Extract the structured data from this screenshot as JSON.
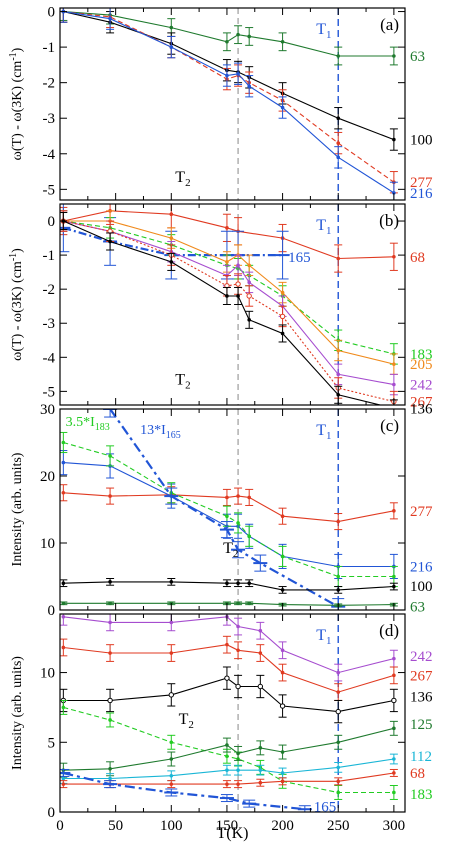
{
  "figure": {
    "x_axis_label": "T(K)",
    "x_ticks": [
      "0",
      "50",
      "100",
      "150",
      "200",
      "250",
      "300"
    ],
    "t1_label": "T",
    "t1_sub": "1",
    "t2_label": "T",
    "t2_sub": "2"
  },
  "chart_data": [
    {
      "panel_label": "(a)",
      "type": "line",
      "ylabel_main": "ω(T) - ω(3K)  (cm",
      "ylabel_sup": "-1",
      "ylabel_tail": ")",
      "xlim": [
        0,
        310
      ],
      "ylim": [
        -5.3,
        0.1
      ],
      "y_ticks": [
        0,
        -1,
        -2,
        -3,
        -4,
        -5
      ],
      "y_tick_labels": [
        "0",
        "-1",
        "-2",
        "-3",
        "-4",
        "-5"
      ],
      "t2_pos": {
        "x": 100,
        "y": -4.8
      },
      "series": [
        {
          "name": "63",
          "color": "#1f7a2e",
          "dash": "",
          "marker": "dot",
          "x": [
            3,
            45,
            100,
            150,
            160,
            170,
            200,
            250,
            300
          ],
          "y": [
            0,
            -0.1,
            -0.45,
            -0.85,
            -0.65,
            -0.7,
            -0.85,
            -1.25,
            -1.25
          ],
          "err": 0.25
        },
        {
          "name": "100",
          "color": "#000000",
          "dash": "",
          "marker": "dot",
          "x": [
            3,
            45,
            100,
            150,
            160,
            170,
            200,
            250,
            300
          ],
          "y": [
            0,
            -0.3,
            -0.9,
            -1.65,
            -1.7,
            -1.85,
            -2.3,
            -3.0,
            -3.6
          ],
          "err": 0.3
        },
        {
          "name": "277",
          "color": "#e03a21",
          "dash": "5,3",
          "marker": "dot",
          "x": [
            3,
            45,
            100,
            150,
            160,
            170,
            200,
            250,
            300
          ],
          "y": [
            0,
            -0.15,
            -1.0,
            -1.9,
            -1.8,
            -2.0,
            -2.5,
            -3.7,
            -4.8
          ],
          "err": 0.3
        },
        {
          "name": "216",
          "color": "#2155d6",
          "dash": "",
          "marker": "dot",
          "x": [
            3,
            45,
            100,
            150,
            160,
            170,
            200,
            250,
            300
          ],
          "y": [
            0,
            -0.2,
            -1.0,
            -1.8,
            -1.75,
            -2.1,
            -2.7,
            -4.1,
            -5.1
          ],
          "err": 0.3
        }
      ]
    },
    {
      "panel_label": "(b)",
      "type": "line",
      "ylabel_main": "ω(T) - ω(3K)  (cm",
      "ylabel_sup": "-1",
      "ylabel_tail": ")",
      "xlim": [
        0,
        310
      ],
      "ylim": [
        -5.4,
        0.5
      ],
      "y_ticks": [
        0,
        -1,
        -2,
        -3,
        -4,
        -5
      ],
      "y_tick_labels": [
        "0",
        "-1",
        "-2",
        "-3",
        "-4",
        "-5"
      ],
      "t2_pos": {
        "x": 100,
        "y": -4.8
      },
      "series": [
        {
          "name": "68",
          "color": "#e03a21",
          "dash": "",
          "marker": "dot",
          "x": [
            3,
            45,
            100,
            150,
            160,
            200,
            250,
            300
          ],
          "y": [
            0,
            0.3,
            0.2,
            -0.2,
            -0.3,
            -0.5,
            -1.1,
            -1.05
          ],
          "err": 0.4
        },
        {
          "name": "165",
          "color": "#2155d6",
          "dash": "8,3,2,3",
          "marker": "bigerr",
          "x": [
            3,
            45,
            100,
            150,
            160,
            200
          ],
          "y": [
            -0.2,
            -0.6,
            -1.0,
            -1.0,
            -1.0,
            -1.0
          ],
          "err": 0.7
        },
        {
          "name": "183",
          "color": "#22cc22",
          "dash": "5,3",
          "marker": "dot",
          "x": [
            3,
            45,
            100,
            150,
            160,
            170,
            200,
            250,
            300
          ],
          "y": [
            0,
            -0.2,
            -0.7,
            -1.3,
            -1.4,
            -1.6,
            -2.2,
            -3.5,
            -3.9
          ],
          "err": 0.3
        },
        {
          "name": "205",
          "color": "#f08a1c",
          "dash": "",
          "marker": "dot",
          "x": [
            3,
            45,
            100,
            150,
            160,
            170,
            200,
            250,
            300
          ],
          "y": [
            0,
            0,
            -0.5,
            -1.2,
            -1.0,
            -1.3,
            -2.1,
            -3.8,
            -4.2
          ],
          "err": 0.3
        },
        {
          "name": "242",
          "color": "#a64dcf",
          "dash": "",
          "marker": "dot",
          "x": [
            3,
            45,
            100,
            150,
            160,
            170,
            200,
            250,
            300
          ],
          "y": [
            0,
            -0.3,
            -0.9,
            -1.6,
            -1.3,
            -1.8,
            -2.5,
            -4.5,
            -4.8
          ],
          "err": 0.3
        },
        {
          "name": "267",
          "color": "#e03a21",
          "dash": "2,2",
          "marker": "circle",
          "x": [
            3,
            45,
            100,
            150,
            160,
            170,
            200,
            250,
            300
          ],
          "y": [
            0,
            -0.3,
            -1.0,
            -1.9,
            -1.85,
            -2.2,
            -2.8,
            -4.9,
            -5.3
          ],
          "err": 0.3
        },
        {
          "name": "136",
          "color": "#000000",
          "dash": "",
          "marker": "dot",
          "x": [
            3,
            45,
            100,
            150,
            160,
            170,
            200,
            250,
            300
          ],
          "y": [
            0,
            -0.6,
            -1.2,
            -2.2,
            -2.2,
            -2.9,
            -3.3,
            -5.1,
            -5.5
          ],
          "err": 0.25
        }
      ]
    },
    {
      "panel_label": "(c)",
      "type": "line",
      "ylabel_main": "Intensity  (arb. units)",
      "xlim": [
        0,
        310
      ],
      "ylim": [
        0,
        30
      ],
      "y_ticks": [
        0,
        10,
        20,
        30
      ],
      "y_tick_labels": [
        "0",
        "10",
        "20",
        "30"
      ],
      "t2_pos": {
        "x": 143,
        "y": 8.5
      },
      "annotations": [
        {
          "text": "3.5*I",
          "sub": "183",
          "color": "#22cc22",
          "x": 5,
          "y": 27.5
        },
        {
          "text": "13*I",
          "sub": "165",
          "color": "#2155d6",
          "x": 72,
          "y": 26.3
        }
      ],
      "series": [
        {
          "name": "277",
          "color": "#e03a21",
          "dash": "",
          "marker": "dot",
          "x": [
            3,
            45,
            100,
            150,
            160,
            170,
            200,
            250,
            300
          ],
          "y": [
            17.5,
            17.0,
            17.2,
            16.8,
            17.0,
            16.8,
            14.0,
            13.2,
            14.8
          ],
          "err": 1.2
        },
        {
          "name": "216",
          "color": "#2155d6",
          "dash": "",
          "marker": "dot",
          "x": [
            3,
            45,
            100,
            150,
            160,
            170,
            200,
            250,
            300
          ],
          "y": [
            22.0,
            21.5,
            17.0,
            12.5,
            12.5,
            11.0,
            8.0,
            6.5,
            6.5
          ],
          "err": 1.8
        },
        {
          "name": "3.5*I183",
          "color": "#22cc22",
          "dash": "5,3",
          "marker": "dot",
          "x": [
            3,
            45,
            100,
            150,
            160,
            170,
            200,
            250,
            300
          ],
          "y": [
            25.0,
            23.0,
            17.5,
            14.0,
            13.0,
            11.0,
            8.0,
            5.0,
            5.0
          ],
          "err": 1.5
        },
        {
          "name": "13*I165",
          "color": "#2155d6",
          "dash": "10,4,3,4",
          "marker": "bigerr",
          "x": [
            45,
            100,
            150,
            160,
            180,
            250
          ],
          "y": [
            30.0,
            17.0,
            12.0,
            9.0,
            7.0,
            0.5
          ],
          "err": 1.2
        },
        {
          "name": "100",
          "color": "#000000",
          "dash": "",
          "marker": "dot",
          "x": [
            3,
            45,
            100,
            150,
            160,
            170,
            200,
            250,
            300
          ],
          "y": [
            4.0,
            4.2,
            4.2,
            4.0,
            4.0,
            4.0,
            3.0,
            3.0,
            3.5
          ],
          "err": 0.5
        },
        {
          "name": "63",
          "color": "#1f7a2e",
          "dash": "",
          "marker": "dot",
          "x": [
            3,
            45,
            100,
            150,
            160,
            170,
            200,
            250,
            300
          ],
          "y": [
            1.0,
            1.0,
            1.0,
            1.0,
            1.0,
            1.0,
            0.8,
            0.7,
            0.8
          ],
          "err": 0.2
        }
      ],
      "series_labels": [
        {
          "text": "277",
          "color": "#e03a21",
          "y": 14.8
        },
        {
          "text": "216",
          "color": "#2155d6",
          "y": 6.5
        },
        {
          "text": "100",
          "color": "#000000",
          "y": 3.6
        },
        {
          "text": "63",
          "color": "#1f7a2e",
          "y": 0.5
        }
      ]
    },
    {
      "panel_label": "(d)",
      "type": "line",
      "ylabel_main": "Intensity  (arb. units)",
      "xlim": [
        0,
        310
      ],
      "ylim": [
        0,
        14.2
      ],
      "y_ticks": [
        0,
        5,
        10
      ],
      "y_tick_labels": [
        "0",
        "5",
        "10"
      ],
      "t2_pos": {
        "x": 103,
        "y": 6.3
      },
      "series": [
        {
          "name": "242",
          "color": "#a64dcf",
          "dash": "",
          "marker": "dot",
          "x": [
            3,
            45,
            100,
            150,
            160,
            180,
            200,
            250,
            300
          ],
          "y": [
            14.0,
            13.6,
            13.6,
            14.0,
            13.3,
            13.0,
            11.6,
            10.0,
            11.0
          ],
          "err": 0.6
        },
        {
          "name": "267",
          "color": "#e03a21",
          "dash": "",
          "marker": "dot",
          "x": [
            3,
            45,
            100,
            150,
            160,
            180,
            200,
            250,
            300
          ],
          "y": [
            11.8,
            11.4,
            11.4,
            12.0,
            11.6,
            11.4,
            10.0,
            8.6,
            9.8
          ],
          "err": 0.6
        },
        {
          "name": "136",
          "color": "#000000",
          "dash": "",
          "marker": "circle",
          "x": [
            3,
            45,
            100,
            150,
            160,
            180,
            200,
            250,
            300
          ],
          "y": [
            8.0,
            8.0,
            8.4,
            9.6,
            9.0,
            9.0,
            7.6,
            7.2,
            8.0
          ],
          "err": 0.8
        },
        {
          "name": "183",
          "color": "#22cc22",
          "dash": "5,3",
          "marker": "dot",
          "x": [
            3,
            45,
            100,
            150,
            160,
            180,
            200,
            250,
            300
          ],
          "y": [
            7.5,
            6.6,
            5.0,
            4.0,
            3.8,
            3.2,
            2.2,
            1.4,
            1.4
          ],
          "err": 0.5
        },
        {
          "name": "125",
          "color": "#1f7a2e",
          "dash": "",
          "marker": "dot",
          "x": [
            3,
            45,
            100,
            150,
            160,
            180,
            200,
            250,
            300
          ],
          "y": [
            3.0,
            3.1,
            3.8,
            4.8,
            4.2,
            4.6,
            4.3,
            5.0,
            6.0
          ],
          "err": 0.5
        },
        {
          "name": "112",
          "color": "#1ab6d6",
          "dash": "",
          "marker": "dot",
          "x": [
            3,
            45,
            100,
            150,
            160,
            180,
            200,
            250,
            300
          ],
          "y": [
            2.4,
            2.4,
            2.6,
            3.0,
            3.0,
            3.0,
            2.8,
            3.2,
            3.8
          ],
          "err": 0.35
        },
        {
          "name": "68",
          "color": "#e03a21",
          "dash": "",
          "marker": "dot",
          "x": [
            3,
            45,
            100,
            150,
            160,
            180,
            200,
            250,
            300
          ],
          "y": [
            2.0,
            2.0,
            2.0,
            2.0,
            2.0,
            2.1,
            2.2,
            2.2,
            2.8
          ],
          "err": 0.25
        },
        {
          "name": "165",
          "color": "#2155d6",
          "dash": "10,4,3,4",
          "marker": "bigerr",
          "x": [
            3,
            45,
            100,
            150,
            170,
            220
          ],
          "y": [
            2.8,
            2.0,
            1.4,
            1.0,
            0.6,
            0.2
          ],
          "err": 0.25
        }
      ],
      "series_labels": [
        {
          "text": "242",
          "color": "#a64dcf",
          "y": 11.2
        },
        {
          "text": "267",
          "color": "#e03a21",
          "y": 9.8
        },
        {
          "text": "136",
          "color": "#000000",
          "y": 8.3
        },
        {
          "text": "125",
          "color": "#1f7a2e",
          "y": 6.3
        },
        {
          "text": "112",
          "color": "#1ab6d6",
          "y": 4.0
        },
        {
          "text": "68",
          "color": "#e03a21",
          "y": 2.8
        },
        {
          "text": "183",
          "color": "#22cc22",
          "y": 1.3
        }
      ],
      "extra_labels": [
        {
          "text": "165",
          "color": "#2155d6",
          "x": 228,
          "y": 0.4
        }
      ]
    }
  ]
}
